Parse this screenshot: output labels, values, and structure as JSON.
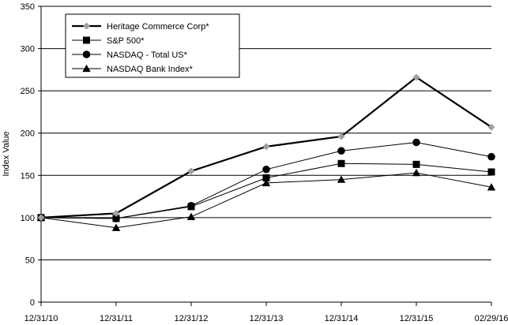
{
  "chart_data": {
    "type": "line",
    "title": "",
    "xlabel": "",
    "ylabel": "Index Value",
    "ylim": [
      0,
      350
    ],
    "yticks": [
      0,
      50,
      100,
      150,
      200,
      250,
      300,
      350
    ],
    "grid": "horizontal",
    "legend_position": "top-left",
    "categories": [
      "12/31/10",
      "12/31/11",
      "12/31/12",
      "12/31/13",
      "12/31/14",
      "12/31/15",
      "02/29/16"
    ],
    "series": [
      {
        "name": "Heritage Commerce Corp*",
        "marker": "diamond",
        "color": "#000000",
        "marker_color": "#a0a0a0",
        "line_width": 2.2,
        "values": [
          100,
          105,
          155,
          184,
          196,
          266,
          207
        ]
      },
      {
        "name": "S&P 500*",
        "marker": "square",
        "color": "#000000",
        "marker_color": "#000000",
        "line_width": 1,
        "values": [
          100,
          99,
          113,
          147,
          164,
          163,
          154
        ]
      },
      {
        "name": "NASDAQ - Total US*",
        "marker": "circle",
        "color": "#000000",
        "marker_color": "#000000",
        "line_width": 1,
        "values": [
          100,
          99,
          114,
          157,
          179,
          189,
          172
        ]
      },
      {
        "name": "NASDAQ Bank Index*",
        "marker": "triangle",
        "color": "#000000",
        "marker_color": "#000000",
        "line_width": 1,
        "values": [
          100,
          88,
          101,
          141,
          145,
          153,
          136
        ]
      }
    ]
  }
}
